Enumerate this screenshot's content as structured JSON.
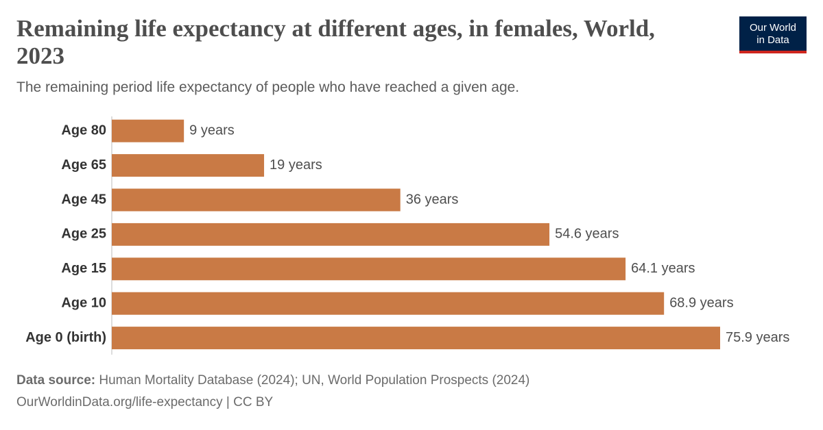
{
  "chart_data": {
    "type": "bar",
    "orientation": "horizontal",
    "title": "Remaining life expectancy at different ages, in females, World, 2023",
    "subtitle": "The remaining period life expectancy of people who have reached a given age.",
    "categories": [
      "Age 80",
      "Age 65",
      "Age 45",
      "Age 25",
      "Age 15",
      "Age 10",
      "Age 0 (birth)"
    ],
    "values": [
      9,
      19,
      36,
      54.6,
      64.1,
      68.9,
      75.9
    ],
    "value_labels": [
      "9 years",
      "19 years",
      "36 years",
      "54.6 years",
      "64.1 years",
      "68.9 years",
      "75.9 years"
    ],
    "color": "#c97a45",
    "source_label": "Data source:",
    "source": "Human Mortality Database (2024); UN, World Population Prospects (2024)",
    "footer": "OurWorldinData.org/life-expectancy | CC BY",
    "logo": [
      "Our World",
      "in Data"
    ]
  }
}
